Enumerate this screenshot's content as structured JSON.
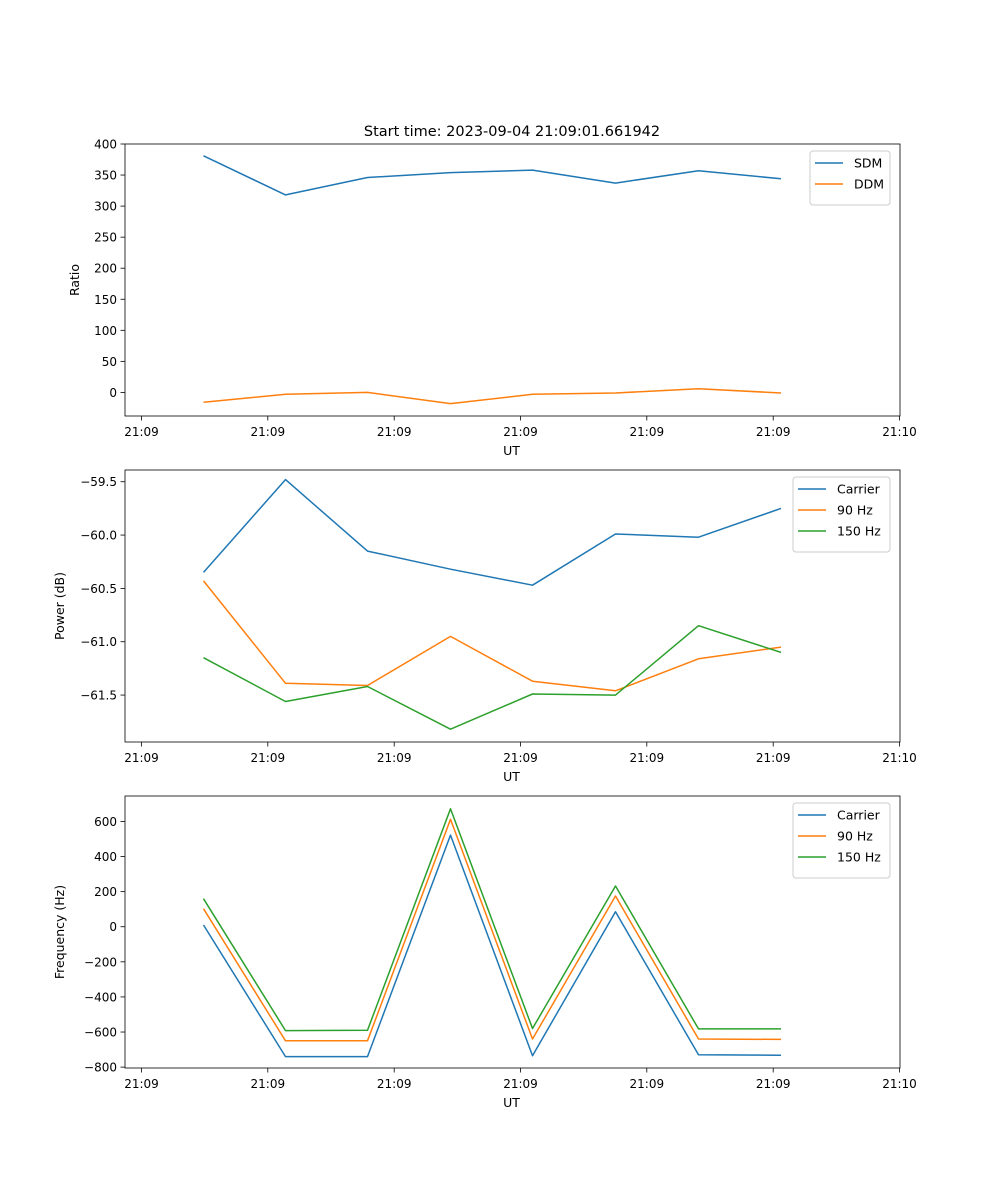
{
  "figure": {
    "title": "Start time: 2023-09-04 21:09:01.661942"
  },
  "colors": {
    "blue": "#1f77b4",
    "orange": "#ff7f0e",
    "green": "#2ca02c"
  },
  "chart_data": [
    {
      "type": "line",
      "title": "Start time: 2023-09-04 21:09:01.661942",
      "xlabel": "UT",
      "ylabel": "Ratio",
      "x": [
        1,
        2,
        3,
        4,
        5,
        6,
        7,
        8
      ],
      "xlim": [
        0.5,
        6.5
      ],
      "xlim_note": "data index units",
      "xlim_actual": [
        0.5,
        6.5
      ],
      "xticks": [
        0,
        1,
        2,
        3,
        4,
        5,
        6
      ],
      "xticklabels": [
        "21:09",
        "21:09",
        "21:09",
        "21:09",
        "21:09",
        "21:09",
        "21:10"
      ],
      "ylim": [
        -38,
        400
      ],
      "yticks": [
        0,
        50,
        100,
        150,
        200,
        250,
        300,
        350,
        400
      ],
      "legend_position": "top-right",
      "series": [
        {
          "name": "SDM",
          "color": "blue",
          "values": [
            381,
            318,
            346,
            354,
            358,
            337,
            357,
            344
          ]
        },
        {
          "name": "DDM",
          "color": "orange",
          "values": [
            -16,
            -3,
            0,
            -18,
            -3,
            -1,
            6,
            -1
          ]
        }
      ]
    },
    {
      "type": "line",
      "title": "",
      "xlabel": "UT",
      "ylabel": "Power (dB)",
      "x": [
        1,
        2,
        3,
        4,
        5,
        6,
        7,
        8
      ],
      "xlim_actual": [
        0.5,
        6.5
      ],
      "xticks": [
        0,
        1,
        2,
        3,
        4,
        5,
        6
      ],
      "xticklabels": [
        "21:09",
        "21:09",
        "21:09",
        "21:09",
        "21:09",
        "21:09",
        "21:10"
      ],
      "ylim": [
        -61.94,
        -59.39
      ],
      "yticks": [
        -61.5,
        -61.0,
        -60.5,
        -60.0,
        -59.5
      ],
      "yticklabels": [
        "−61.5",
        "−61.0",
        "−60.5",
        "−60.0",
        "−59.5"
      ],
      "legend_position": "top-right",
      "series": [
        {
          "name": "Carrier",
          "color": "blue",
          "values": [
            -60.35,
            -59.48,
            -60.15,
            -60.32,
            -60.47,
            -59.99,
            -60.02,
            -59.75
          ]
        },
        {
          "name": "90 Hz",
          "color": "orange",
          "values": [
            -60.43,
            -61.39,
            -61.41,
            -60.95,
            -61.37,
            -61.46,
            -61.16,
            -61.05
          ]
        },
        {
          "name": "150 Hz",
          "color": "green",
          "values": [
            -61.15,
            -61.56,
            -61.42,
            -61.82,
            -61.49,
            -61.5,
            -60.85,
            -61.1
          ]
        }
      ]
    },
    {
      "type": "line",
      "title": "",
      "xlabel": "UT",
      "ylabel": "Frequency (Hz)",
      "x": [
        1,
        2,
        3,
        4,
        5,
        6,
        7,
        8
      ],
      "xlim_actual": [
        0.5,
        6.5
      ],
      "xticks": [
        0,
        1,
        2,
        3,
        4,
        5,
        6
      ],
      "xticklabels": [
        "21:09",
        "21:09",
        "21:09",
        "21:09",
        "21:09",
        "21:09",
        "21:10"
      ],
      "ylim": [
        -805,
        745
      ],
      "yticks": [
        -800,
        -600,
        -400,
        -200,
        0,
        200,
        400,
        600
      ],
      "yticklabels": [
        "−800",
        "−600",
        "−400",
        "−200",
        "0",
        "200",
        "400",
        "600"
      ],
      "legend_position": "top-right",
      "series": [
        {
          "name": "Carrier",
          "color": "blue",
          "values": [
            10,
            -740,
            -740,
            522,
            -735,
            85,
            -730,
            -732
          ]
        },
        {
          "name": "90 Hz",
          "color": "orange",
          "values": [
            103,
            -650,
            -650,
            612,
            -640,
            175,
            -640,
            -642
          ]
        },
        {
          "name": "150 Hz",
          "color": "green",
          "values": [
            160,
            -592,
            -590,
            672,
            -580,
            232,
            -582,
            -582
          ]
        }
      ]
    }
  ]
}
